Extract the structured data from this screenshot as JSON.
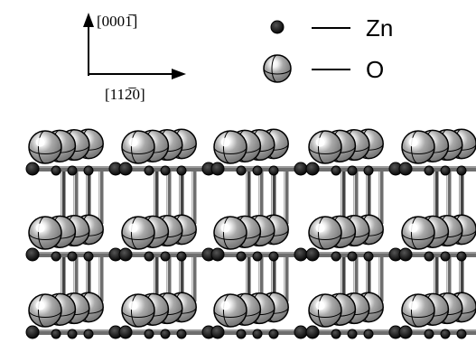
{
  "axes": {
    "vertical_label": "[0001̅]",
    "horizontal_label": "[112̅0]"
  },
  "legend": {
    "zn_label": "Zn",
    "o_label": "O"
  },
  "colors": {
    "o_sphere": "#9a9a9a",
    "o_highlight": "#ffffff",
    "zn_sphere": "#000000",
    "bond": "#6e6e6e",
    "outline": "#000000"
  },
  "structure": {
    "layers": 3,
    "oxygen_per_row": 4,
    "groups_per_layer": 5
  }
}
